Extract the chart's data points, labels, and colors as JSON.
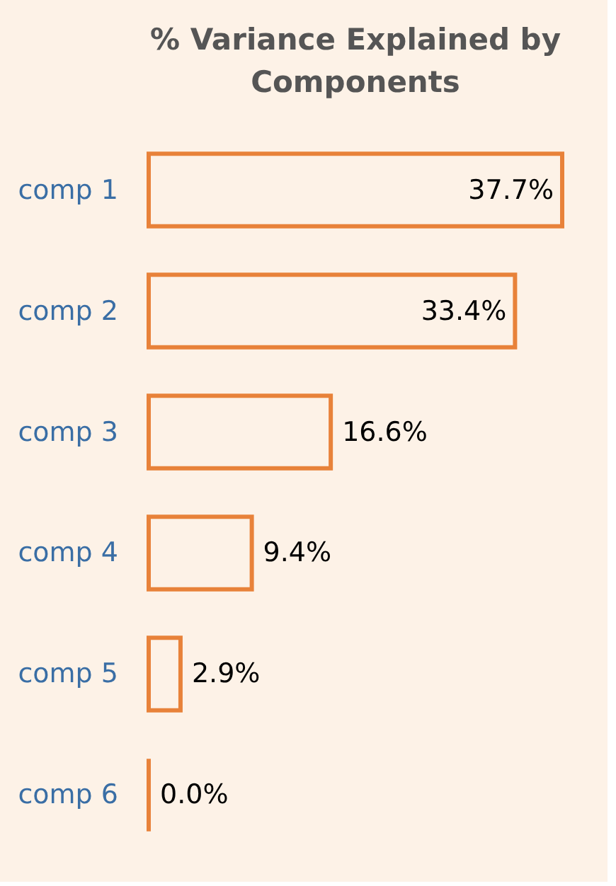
{
  "chart_data": {
    "type": "bar",
    "orientation": "horizontal",
    "title": "% Variance Explained by Components",
    "categories": [
      "comp 1",
      "comp 2",
      "comp 3",
      "comp 4",
      "comp 5",
      "comp 6"
    ],
    "values": [
      37.7,
      33.4,
      16.6,
      9.4,
      2.9,
      0.0
    ],
    "value_labels": [
      "37.7%",
      "33.4%",
      "16.6%",
      "9.4%",
      "2.9%",
      "0.0%"
    ],
    "color": "#e8823a",
    "grid": false
  }
}
